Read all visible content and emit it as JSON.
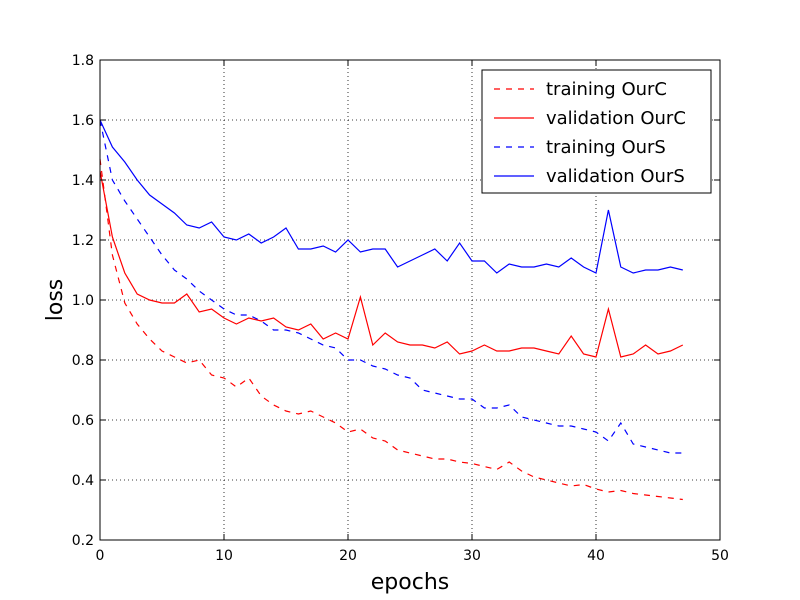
{
  "chart_data": {
    "type": "line",
    "title": "",
    "xlabel": "epochs",
    "ylabel": "loss",
    "xlim": [
      0,
      50
    ],
    "ylim": [
      0.2,
      1.8
    ],
    "xticks": [
      0,
      10,
      20,
      30,
      40,
      50
    ],
    "yticks": [
      0.2,
      0.4,
      0.6,
      0.8,
      1.0,
      1.2,
      1.4,
      1.6,
      1.8
    ],
    "xtick_labels": [
      "0",
      "10",
      "20",
      "30",
      "40",
      "50"
    ],
    "ytick_labels": [
      "0.2",
      "0.4",
      "0.6",
      "0.8",
      "1.0",
      "1.2",
      "1.4",
      "1.6",
      "1.8"
    ],
    "grid": true,
    "legend_position": "top-right",
    "series": [
      {
        "name": "training OurC",
        "color": "#ff0000",
        "style": "dashed",
        "x": [
          0,
          1,
          2,
          3,
          4,
          5,
          6,
          7,
          8,
          9,
          10,
          11,
          12,
          13,
          14,
          15,
          16,
          17,
          18,
          19,
          20,
          21,
          22,
          23,
          24,
          25,
          26,
          27,
          28,
          29,
          30,
          31,
          32,
          33,
          34,
          35,
          36,
          37,
          38,
          39,
          40,
          41,
          42,
          43,
          44,
          45,
          46,
          47
        ],
        "values": [
          1.47,
          1.15,
          0.99,
          0.92,
          0.87,
          0.83,
          0.81,
          0.79,
          0.8,
          0.75,
          0.74,
          0.71,
          0.74,
          0.68,
          0.65,
          0.63,
          0.62,
          0.63,
          0.61,
          0.59,
          0.56,
          0.57,
          0.54,
          0.53,
          0.5,
          0.49,
          0.48,
          0.47,
          0.47,
          0.46,
          0.455,
          0.445,
          0.435,
          0.46,
          0.43,
          0.41,
          0.4,
          0.39,
          0.38,
          0.385,
          0.37,
          0.36,
          0.365,
          0.355,
          0.35,
          0.345,
          0.34,
          0.335
        ]
      },
      {
        "name": "validation OurC",
        "color": "#ff0000",
        "style": "solid",
        "x": [
          0,
          1,
          2,
          3,
          4,
          5,
          6,
          7,
          8,
          9,
          10,
          11,
          12,
          13,
          14,
          15,
          16,
          17,
          18,
          19,
          20,
          21,
          22,
          23,
          24,
          25,
          26,
          27,
          28,
          29,
          30,
          31,
          32,
          33,
          34,
          35,
          36,
          37,
          38,
          39,
          40,
          41,
          42,
          43,
          44,
          45,
          46,
          47
        ],
        "values": [
          1.43,
          1.21,
          1.09,
          1.02,
          1.0,
          0.99,
          0.99,
          1.02,
          0.96,
          0.97,
          0.94,
          0.92,
          0.94,
          0.93,
          0.94,
          0.91,
          0.9,
          0.92,
          0.87,
          0.89,
          0.87,
          1.01,
          0.85,
          0.89,
          0.86,
          0.85,
          0.85,
          0.84,
          0.86,
          0.82,
          0.83,
          0.85,
          0.83,
          0.83,
          0.84,
          0.84,
          0.83,
          0.82,
          0.88,
          0.82,
          0.81,
          0.97,
          0.81,
          0.82,
          0.85,
          0.82,
          0.83,
          0.85
        ]
      },
      {
        "name": "training OurS",
        "color": "#0000ff",
        "style": "dashed",
        "x": [
          0,
          1,
          2,
          3,
          4,
          5,
          6,
          7,
          8,
          9,
          10,
          11,
          12,
          13,
          14,
          15,
          16,
          17,
          18,
          19,
          20,
          21,
          22,
          23,
          24,
          25,
          26,
          27,
          28,
          29,
          30,
          31,
          32,
          33,
          34,
          35,
          36,
          37,
          38,
          39,
          40,
          41,
          42,
          43,
          44,
          45,
          46,
          47
        ],
        "values": [
          1.6,
          1.4,
          1.33,
          1.27,
          1.21,
          1.15,
          1.1,
          1.07,
          1.03,
          1.0,
          0.97,
          0.95,
          0.95,
          0.93,
          0.9,
          0.9,
          0.89,
          0.87,
          0.85,
          0.84,
          0.8,
          0.8,
          0.78,
          0.77,
          0.75,
          0.74,
          0.7,
          0.69,
          0.68,
          0.67,
          0.67,
          0.64,
          0.64,
          0.65,
          0.61,
          0.6,
          0.59,
          0.58,
          0.58,
          0.57,
          0.56,
          0.53,
          0.59,
          0.52,
          0.51,
          0.5,
          0.49,
          0.49
        ]
      },
      {
        "name": "validation OurS",
        "color": "#0000ff",
        "style": "solid",
        "x": [
          0,
          1,
          2,
          3,
          4,
          5,
          6,
          7,
          8,
          9,
          10,
          11,
          12,
          13,
          14,
          15,
          16,
          17,
          18,
          19,
          20,
          21,
          22,
          23,
          24,
          25,
          26,
          27,
          28,
          29,
          30,
          31,
          32,
          33,
          34,
          35,
          36,
          37,
          38,
          39,
          40,
          41,
          42,
          43,
          44,
          45,
          46,
          47
        ],
        "values": [
          1.6,
          1.51,
          1.46,
          1.4,
          1.35,
          1.32,
          1.29,
          1.25,
          1.24,
          1.26,
          1.21,
          1.2,
          1.22,
          1.19,
          1.21,
          1.24,
          1.17,
          1.17,
          1.18,
          1.16,
          1.2,
          1.16,
          1.17,
          1.17,
          1.11,
          1.13,
          1.15,
          1.17,
          1.13,
          1.19,
          1.13,
          1.13,
          1.09,
          1.12,
          1.11,
          1.11,
          1.12,
          1.11,
          1.14,
          1.11,
          1.09,
          1.3,
          1.11,
          1.09,
          1.1,
          1.1,
          1.11,
          1.1
        ]
      }
    ]
  }
}
